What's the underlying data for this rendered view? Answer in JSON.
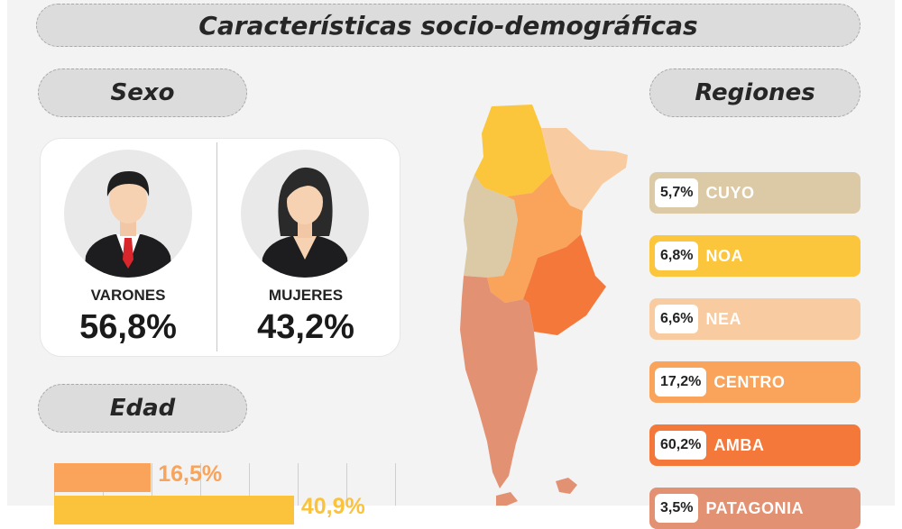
{
  "header": {
    "title": "Características socio-demográficas"
  },
  "sexo": {
    "title": "Sexo",
    "items": [
      {
        "label": "VARONES",
        "value": "56,8%"
      },
      {
        "label": "MUJERES",
        "value": "43,2%"
      }
    ]
  },
  "edad": {
    "title": "Edad",
    "bars": [
      {
        "label": "16,5%",
        "value": 16.5,
        "color": "#f9a35b"
      },
      {
        "label": "40,9%",
        "value": 40.9,
        "color": "#fbc23c"
      }
    ]
  },
  "regiones": {
    "title": "Regiones",
    "items": [
      {
        "pct": "5,7%",
        "name": "CUYO",
        "color": "#dcc9a6"
      },
      {
        "pct": "6,8%",
        "name": "NOA",
        "color": "#fbc53c"
      },
      {
        "pct": "6,6%",
        "name": "NEA",
        "color": "#f9cba0"
      },
      {
        "pct": "17,2%",
        "name": "CENTRO",
        "color": "#f9a35b"
      },
      {
        "pct": "60,2%",
        "name": "AMBA",
        "color": "#f4783a"
      },
      {
        "pct": "3,5%",
        "name": "PATAGONIA",
        "color": "#e39173"
      }
    ]
  }
}
